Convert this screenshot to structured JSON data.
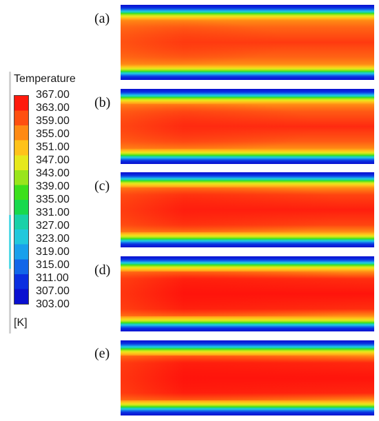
{
  "legend": {
    "title": "Temperature",
    "unit": "[K]",
    "ticks": [
      "367.00",
      "363.00",
      "359.00",
      "355.00",
      "351.00",
      "347.00",
      "343.00",
      "339.00",
      "335.00",
      "331.00",
      "327.00",
      "323.00",
      "319.00",
      "315.00",
      "311.00",
      "307.00",
      "303.00"
    ],
    "colors": [
      "#ff1a0d",
      "#ff5010",
      "#ff8a14",
      "#ffc21a",
      "#e6e81c",
      "#99e51c",
      "#3ce01c",
      "#19d94d",
      "#19d1a8",
      "#22c8dc",
      "#19a0ec",
      "#1266e8",
      "#0a2ee0",
      "#0a10d0"
    ]
  },
  "panels": [
    {
      "label": "(a)",
      "core_color": "#ff3a10",
      "mid_color": "#ff6414"
    },
    {
      "label": "(b)",
      "core_color": "#ff2a10",
      "mid_color": "#ff5a14"
    },
    {
      "label": "(c)",
      "core_color": "#ff1e0e",
      "mid_color": "#ff4410"
    },
    {
      "label": "(d)",
      "core_color": "#ff140c",
      "mid_color": "#ff2e0e"
    },
    {
      "label": "(e)",
      "core_color": "#ff140c",
      "mid_color": "#ff2a0e"
    }
  ]
}
